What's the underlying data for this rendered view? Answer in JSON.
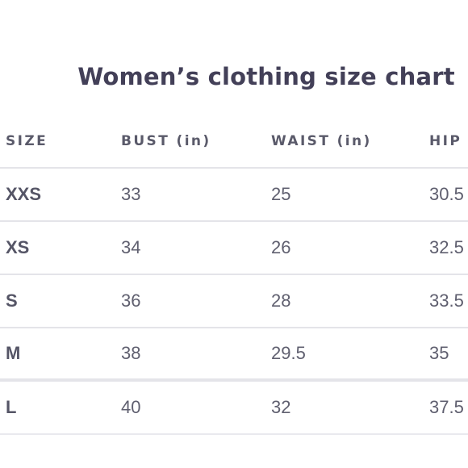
{
  "title": "Women’s clothing size chart",
  "table": {
    "columns": [
      "SIZE",
      "BUST (in)",
      "WAIST (in)",
      "HIP"
    ],
    "rows": [
      {
        "size": "XXS",
        "bust": "33",
        "waist": "25",
        "hip": "30.5"
      },
      {
        "size": "XS",
        "bust": "34",
        "waist": "26",
        "hip": "32.5"
      },
      {
        "size": "S",
        "bust": "36",
        "waist": "28",
        "hip": "33.5"
      },
      {
        "size": "M",
        "bust": "38",
        "waist": "29.5",
        "hip": "35"
      },
      {
        "size": "L",
        "bust": "40",
        "waist": "32",
        "hip": "37.5"
      }
    ]
  }
}
